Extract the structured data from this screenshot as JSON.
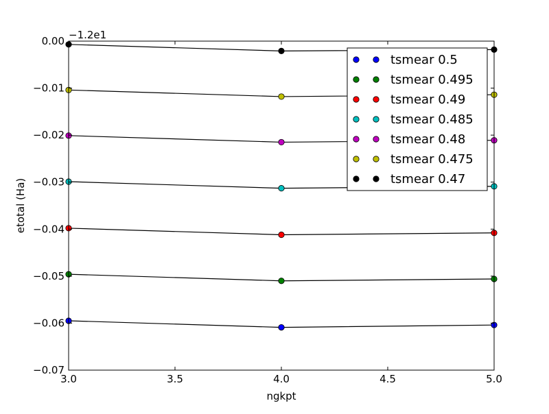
{
  "chart_data": {
    "type": "line",
    "xlabel": "ngkpt",
    "ylabel": "etotal (Ha)",
    "y_offset_text": "−1.2e1",
    "x": [
      3.0,
      4.0,
      5.0
    ],
    "xlim": [
      3.0,
      5.0
    ],
    "ylim": [
      -0.07,
      0.0
    ],
    "x_ticks": [
      3.0,
      3.5,
      4.0,
      4.5,
      5.0
    ],
    "x_tick_labels": [
      "3.0",
      "3.5",
      "4.0",
      "4.5",
      "5.0"
    ],
    "y_ticks": [
      0.0,
      -0.01,
      -0.02,
      -0.03,
      -0.04,
      -0.05,
      -0.06,
      -0.07
    ],
    "y_tick_labels": [
      "0.00",
      "−0.01",
      "−0.02",
      "−0.03",
      "−0.04",
      "−0.05",
      "−0.06",
      "−0.07"
    ],
    "grid": false,
    "legend_position": "top-right",
    "line_color": "#000000",
    "series": [
      {
        "name": "tsmear 0.5",
        "color": "#0000ff",
        "values": [
          -0.0595,
          -0.0609,
          -0.0604
        ]
      },
      {
        "name": "tsmear 0.495",
        "color": "#008000",
        "values": [
          -0.0496,
          -0.051,
          -0.0506
        ]
      },
      {
        "name": "tsmear 0.49",
        "color": "#ff0000",
        "values": [
          -0.0398,
          -0.0412,
          -0.0408
        ]
      },
      {
        "name": "tsmear 0.485",
        "color": "#00bfbf",
        "values": [
          -0.0299,
          -0.0313,
          -0.0309
        ]
      },
      {
        "name": "tsmear 0.48",
        "color": "#bf00bf",
        "values": [
          -0.0201,
          -0.0215,
          -0.0211
        ]
      },
      {
        "name": "tsmear 0.475",
        "color": "#bfbf00",
        "values": [
          -0.0104,
          -0.0118,
          -0.0114
        ]
      },
      {
        "name": "tsmear 0.47",
        "color": "#000000",
        "values": [
          -0.0007,
          -0.0021,
          -0.0018
        ]
      }
    ]
  }
}
